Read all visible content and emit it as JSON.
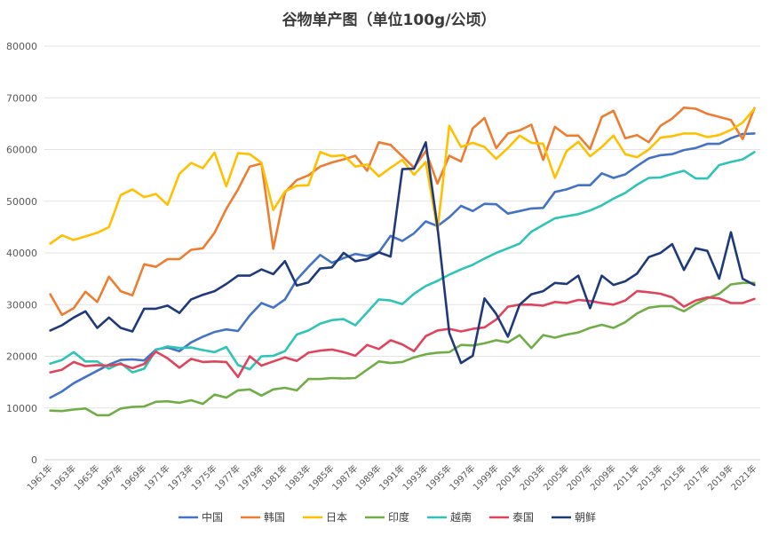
{
  "chart_data": {
    "type": "line",
    "title": "谷物单产图（单位100g/公顷）",
    "xlabel": "",
    "ylabel": "",
    "ylim": [
      0,
      80000
    ],
    "yticks": [
      "0",
      "10000",
      "20000",
      "30000",
      "40000",
      "50000",
      "60000",
      "70000",
      "80000"
    ],
    "x": [
      1961,
      1962,
      1963,
      1964,
      1965,
      1966,
      1967,
      1968,
      1969,
      1970,
      1971,
      1972,
      1973,
      1974,
      1975,
      1976,
      1977,
      1978,
      1979,
      1980,
      1981,
      1982,
      1983,
      1984,
      1985,
      1986,
      1987,
      1988,
      1989,
      1990,
      1991,
      1992,
      1993,
      1994,
      1995,
      1996,
      1997,
      1998,
      1999,
      2000,
      2001,
      2002,
      2003,
      2004,
      2005,
      2006,
      2007,
      2008,
      2009,
      2010,
      2011,
      2012,
      2013,
      2014,
      2015,
      2016,
      2017,
      2018,
      2019,
      2020,
      2021
    ],
    "x_tick_labels": [
      "1961年",
      "1963年",
      "1965年",
      "1967年",
      "1969年",
      "1971年",
      "1973年",
      "1975年",
      "1977年",
      "1979年",
      "1981年",
      "1983年",
      "1985年",
      "1987年",
      "1989年",
      "1991年",
      "1993年",
      "1995年",
      "1997年",
      "1999年",
      "2001年",
      "2003年",
      "2005年",
      "2007年",
      "2009年",
      "2011年",
      "2013年",
      "2015年",
      "2017年",
      "2019年",
      "2021年"
    ],
    "grid": true,
    "legend_position": "bottom",
    "series": [
      {
        "name": "中国",
        "color": "#4472C4",
        "values": [
          12000,
          13200,
          14800,
          16000,
          17200,
          18400,
          19300,
          19400,
          19200,
          21300,
          21700,
          21000,
          22700,
          23800,
          24700,
          25200,
          24900,
          27900,
          30300,
          29400,
          31000,
          34800,
          37300,
          39600,
          38100,
          39000,
          39800,
          39400,
          40100,
          43300,
          42300,
          43800,
          46100,
          45200,
          46900,
          49100,
          48100,
          49500,
          49400,
          47600,
          48100,
          48600,
          48700,
          51800,
          52300,
          53100,
          53100,
          55400,
          54500,
          55200,
          56800,
          58300,
          58900,
          59100,
          59900,
          60300,
          61100,
          61100,
          62200,
          63000,
          63100
        ]
      },
      {
        "name": "韩国",
        "color": "#ED7D31",
        "values": [
          32000,
          28000,
          29300,
          32500,
          30500,
          35400,
          32600,
          31800,
          37800,
          37300,
          38800,
          38800,
          40600,
          40900,
          43900,
          48500,
          52300,
          56700,
          57300,
          40800,
          51700,
          54100,
          55000,
          56700,
          57500,
          58100,
          58800,
          55900,
          61400,
          60900,
          58700,
          56500,
          59700,
          53400,
          58800,
          57700,
          64100,
          66100,
          60300,
          63100,
          63700,
          64800,
          58000,
          64400,
          62700,
          62700,
          60100,
          66300,
          67500,
          62200,
          62800,
          61400,
          64600,
          66000,
          68100,
          67900,
          66900,
          66300,
          65700,
          62000,
          68000
        ]
      },
      {
        "name": "日本",
        "color": "#FFC000",
        "values": [
          41800,
          43400,
          42500,
          43200,
          43900,
          45000,
          51200,
          52300,
          50800,
          51400,
          49300,
          55300,
          57400,
          56400,
          59400,
          52900,
          59300,
          59100,
          57400,
          48300,
          51900,
          53000,
          53100,
          59500,
          58700,
          58900,
          56700,
          57100,
          54800,
          56500,
          58000,
          55100,
          57600,
          44400,
          64600,
          60500,
          61300,
          60500,
          58200,
          60300,
          62700,
          61300,
          61100,
          54500,
          59700,
          61500,
          58700,
          60500,
          62700,
          59100,
          58500,
          60000,
          62300,
          62600,
          63100,
          63100,
          62400,
          62800,
          63800,
          65200,
          67900
        ]
      },
      {
        "name": "印度",
        "color": "#70AD47",
        "values": [
          9500,
          9400,
          9700,
          9900,
          8600,
          8600,
          9900,
          10200,
          10300,
          11200,
          11300,
          11000,
          11500,
          10800,
          12600,
          12000,
          13400,
          13600,
          12400,
          13600,
          13900,
          13400,
          15600,
          15600,
          15800,
          15700,
          15800,
          17400,
          19000,
          18700,
          18900,
          19800,
          20400,
          20700,
          20800,
          22200,
          22100,
          22500,
          23100,
          22700,
          24100,
          21600,
          24100,
          23600,
          24200,
          24600,
          25500,
          26100,
          25500,
          26600,
          28300,
          29400,
          29700,
          29700,
          28700,
          30100,
          31200,
          32100,
          33900,
          34200,
          34200
        ]
      },
      {
        "name": "越南",
        "color": "#2EC4B6",
        "values": [
          18600,
          19300,
          20800,
          19000,
          19000,
          17600,
          18700,
          16900,
          17600,
          21200,
          21900,
          21600,
          21700,
          21200,
          20800,
          21800,
          18300,
          17500,
          20000,
          20100,
          21000,
          24200,
          25000,
          26300,
          27000,
          27200,
          26000,
          28500,
          31000,
          30800,
          30100,
          32100,
          33600,
          34600,
          35800,
          36800,
          37700,
          38900,
          40000,
          40900,
          41800,
          44100,
          45400,
          46700,
          47100,
          47500,
          48200,
          49200,
          50500,
          51600,
          53200,
          54500,
          54600,
          55300,
          55900,
          54400,
          54400,
          57000,
          57600,
          58100,
          59500
        ]
      },
      {
        "name": "泰国",
        "color": "#E0445C",
        "values": [
          16900,
          17400,
          18900,
          18100,
          18300,
          18200,
          18500,
          17700,
          18500,
          20900,
          19600,
          17800,
          19500,
          18900,
          19000,
          18900,
          16000,
          20000,
          18200,
          19000,
          19800,
          19100,
          20700,
          21100,
          21300,
          20800,
          20100,
          22200,
          21400,
          23100,
          22300,
          21000,
          23900,
          25000,
          25300,
          24800,
          25300,
          25600,
          27100,
          29600,
          30000,
          30000,
          29800,
          30500,
          30300,
          30900,
          30700,
          30300,
          30000,
          30800,
          32600,
          32400,
          32100,
          31400,
          29600,
          30800,
          31400,
          31200,
          30300,
          30300,
          31100
        ]
      },
      {
        "name": "朝鲜",
        "color": "#1F3A7A",
        "values": [
          25000,
          26000,
          27500,
          28700,
          25500,
          27500,
          25500,
          24800,
          29200,
          29200,
          29800,
          28400,
          31000,
          31900,
          32600,
          34000,
          35600,
          35600,
          36800,
          35900,
          38400,
          33700,
          34300,
          37000,
          37200,
          40000,
          38400,
          38800,
          40100,
          39300,
          56200,
          56300,
          61400,
          45000,
          24500,
          18700,
          20100,
          31200,
          28200,
          23800,
          30000,
          32000,
          32600,
          34200,
          34000,
          35600,
          29300,
          35600,
          33800,
          34500,
          36000,
          39200,
          40000,
          41700,
          36700,
          40900,
          40400,
          35000,
          44000,
          35000,
          33800
        ]
      }
    ]
  }
}
